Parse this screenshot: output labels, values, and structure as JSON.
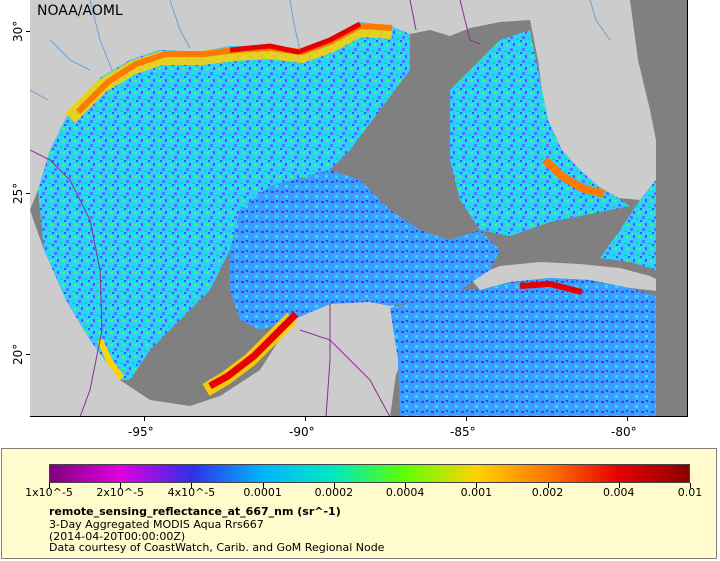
{
  "map": {
    "credit": "NOAA/AOML",
    "x_ticks": [
      "-95°",
      "-90°",
      "-85°",
      "-80°"
    ],
    "y_ticks": [
      "30°",
      "25°",
      "20°"
    ]
  },
  "legend": {
    "tick_labels": [
      "1x10^-5",
      "2x10^-5",
      "4x10^-5",
      "0.0001",
      "0.0002",
      "0.0004",
      "0.001",
      "0.002",
      "0.004",
      "0.01"
    ],
    "variable": "remote_sensing_reflectance_at_667_nm (sr^-1)",
    "dataset": "3-Day Aggregated MODIS Aqua Rrs667",
    "time": "(2014-04-20T00:00:00Z)",
    "source": "Data courtesy of CoastWatch, Carib. and GoM Regional Node"
  },
  "colors": {
    "land": "#cccccc",
    "no_data": "#808080",
    "border": "#8b2f8f",
    "river": "#6aa0d8",
    "colormap": [
      "#800080",
      "#e000e0",
      "#2f2fe8",
      "#00b4ff",
      "#00e8c0",
      "#5dff00",
      "#ffd200",
      "#ff7800",
      "#e60000",
      "#8b0000"
    ]
  }
}
